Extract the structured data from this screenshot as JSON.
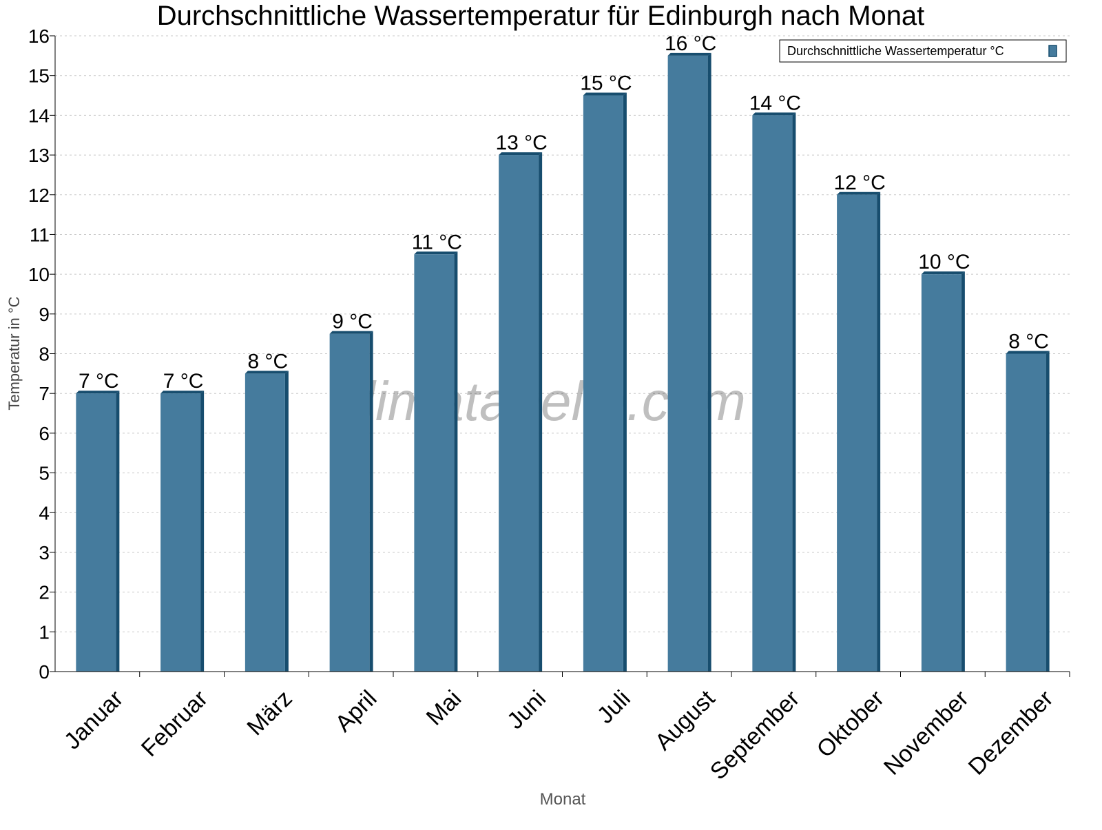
{
  "chart_data": {
    "type": "bar",
    "title": "Durchschnittliche Wassertemperatur für Edinburgh nach Monat",
    "xlabel": "Monat",
    "ylabel": "Temperatur in °C",
    "categories": [
      "Januar",
      "Februar",
      "März",
      "April",
      "Mai",
      "Juni",
      "Juli",
      "August",
      "September",
      "Oktober",
      "November",
      "Dezember"
    ],
    "series": [
      {
        "name": "Durchschnittliche Wassertemperatur °C",
        "values": [
          7,
          7,
          7.5,
          8.5,
          10.5,
          13,
          14.5,
          15.5,
          14,
          12,
          10,
          8
        ],
        "labels": [
          "7 °C",
          "7 °C",
          "8 °C",
          "9 °C",
          "11 °C",
          "13 °C",
          "15 °C",
          "16 °C",
          "14 °C",
          "12 °C",
          "10 °C",
          "8 °C"
        ]
      }
    ],
    "ylim": [
      0,
      16
    ],
    "yticks": [
      "0",
      "1",
      "2",
      "3",
      "4",
      "5",
      "6",
      "7",
      "8",
      "9",
      "10",
      "11",
      "12",
      "13",
      "14",
      "15",
      "16"
    ],
    "grid": true,
    "legend": "top-right",
    "colors": {
      "bar": "#457b9d",
      "bar_side": "#174d6e",
      "grid": "#c8c8c8"
    },
    "watermark": "klimatabelle.com"
  }
}
